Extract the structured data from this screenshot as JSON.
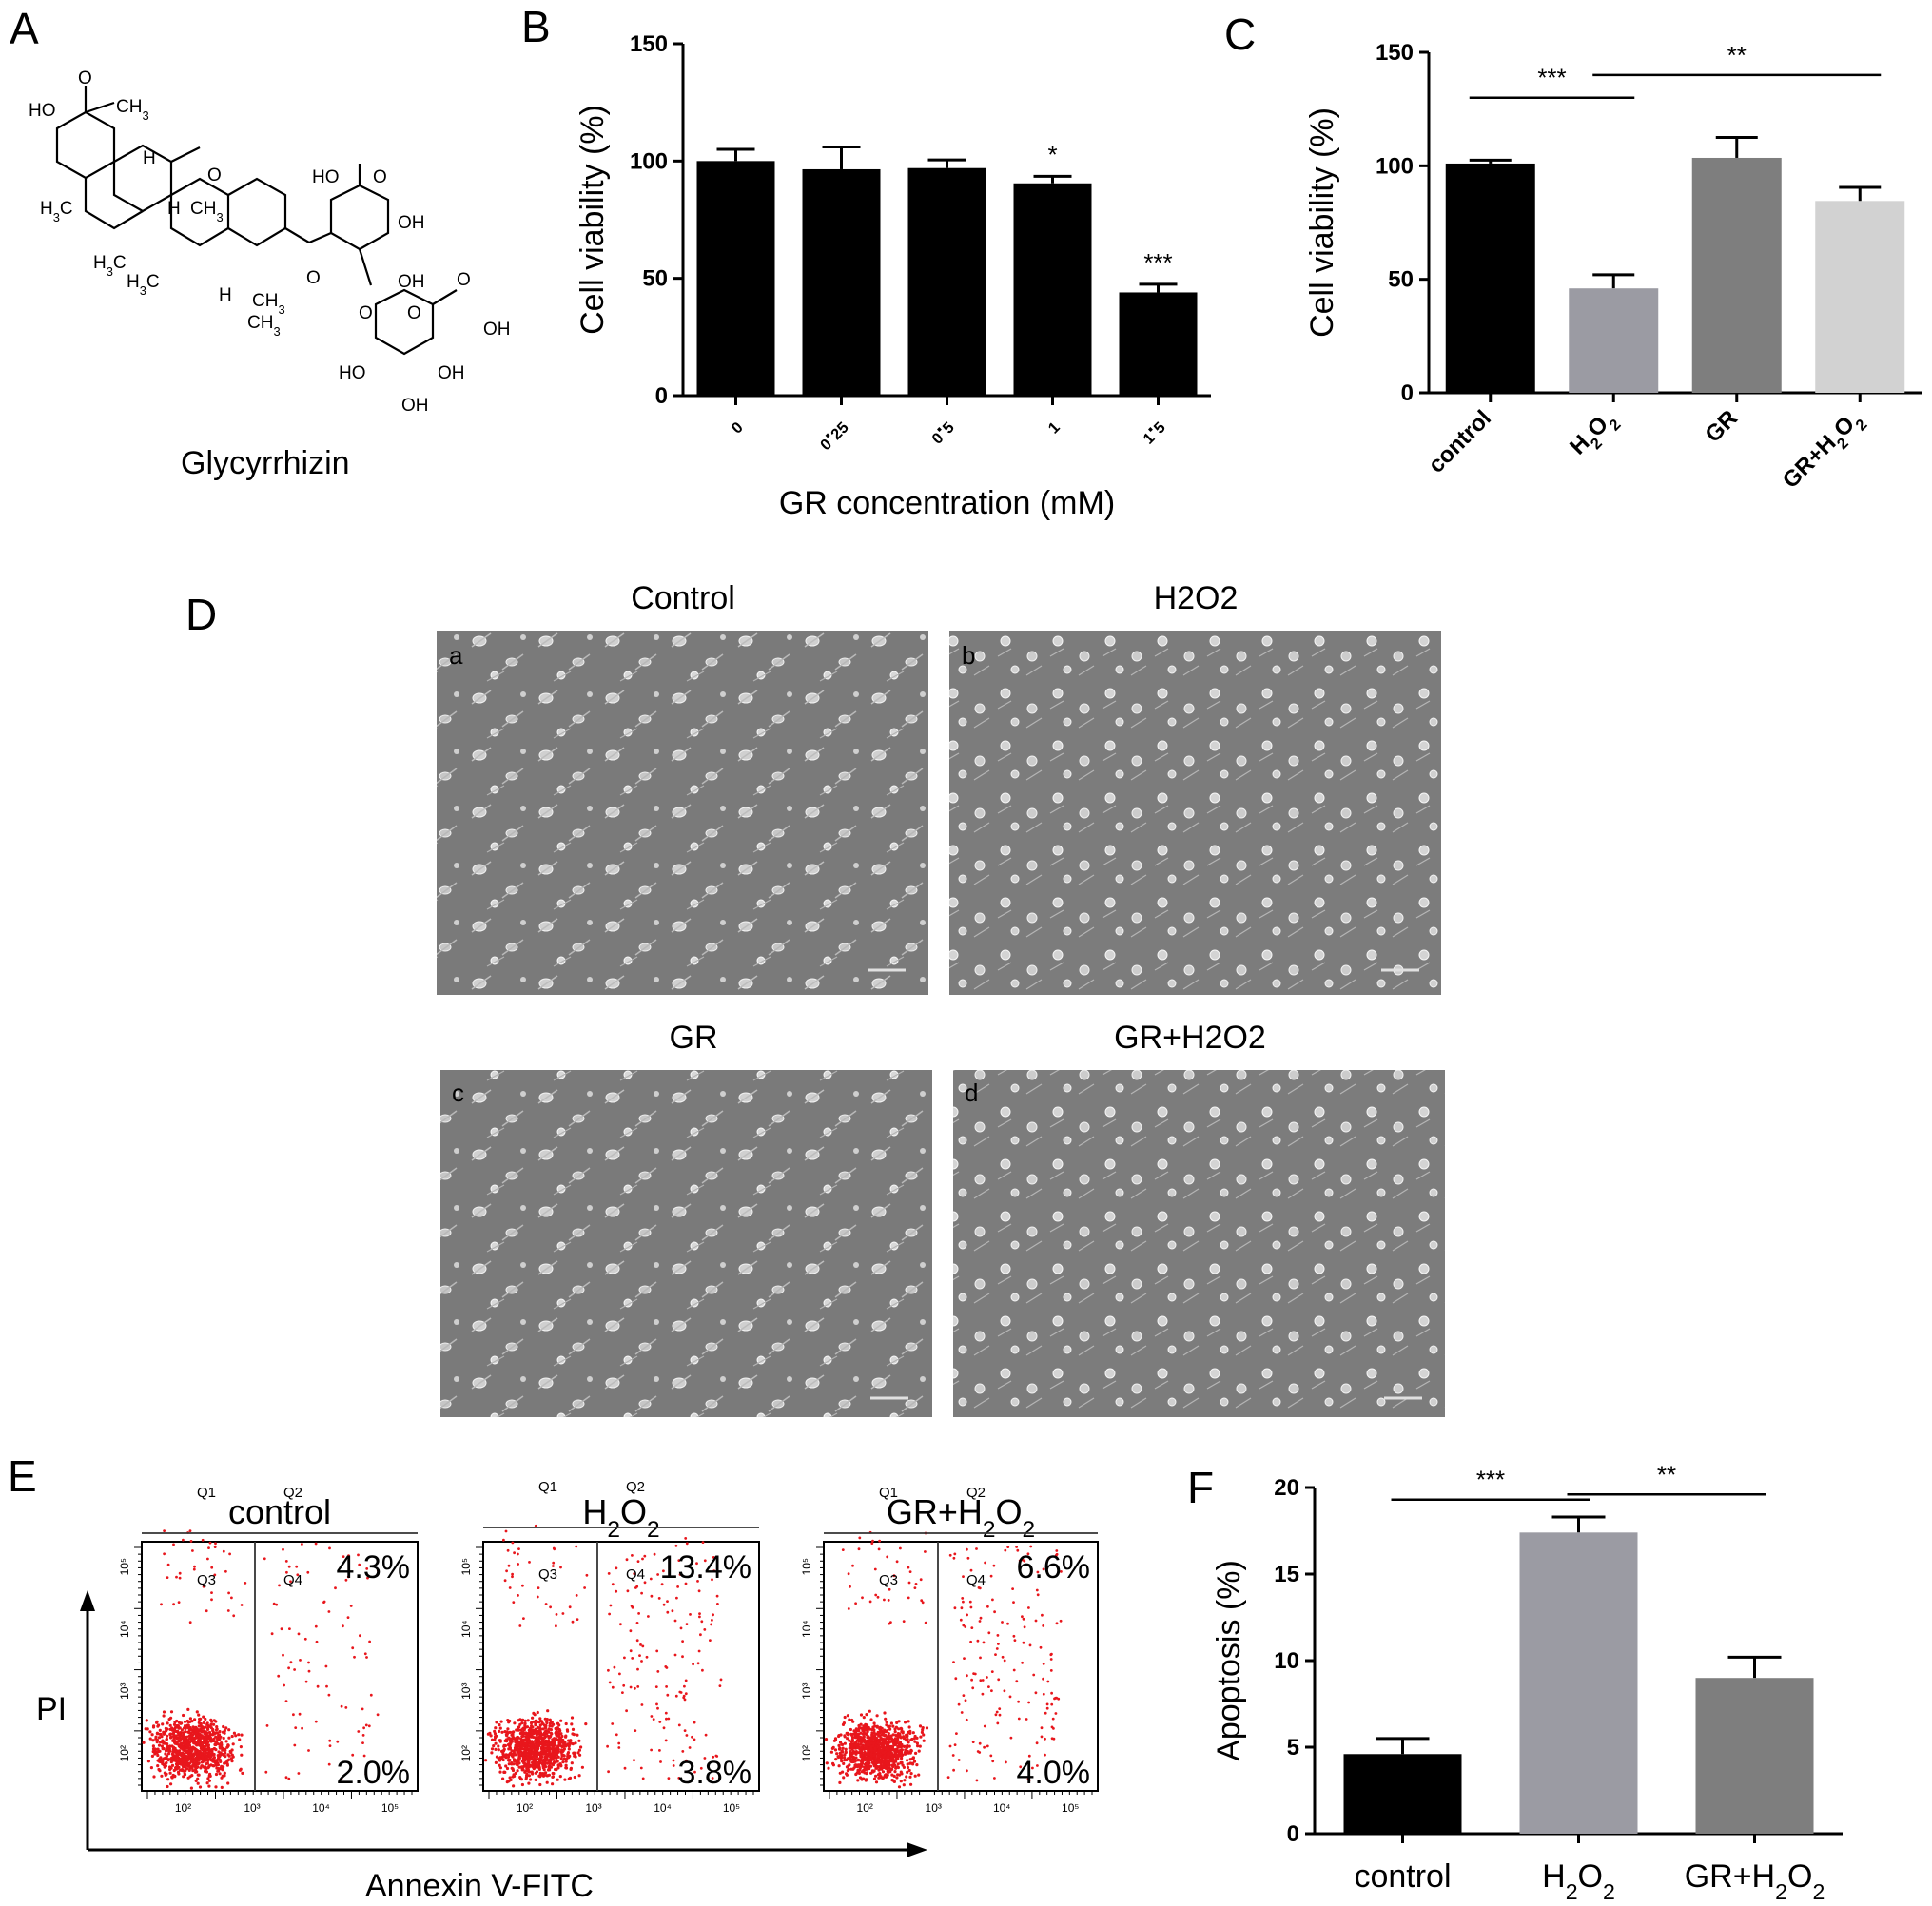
{
  "panels": {
    "A": {
      "label": "A",
      "compound_name": "Glycyrrhizin",
      "atom_labels": [
        "HO",
        "O",
        "CH3",
        "H",
        "O",
        "H3C",
        "H",
        "CH3",
        "HO",
        "O",
        "OH",
        "H3C",
        "H3C",
        "H",
        "CH3",
        "CH3",
        "O",
        "OH",
        "O",
        "O",
        "O",
        "OH",
        "HO",
        "OH",
        "OH"
      ]
    },
    "B": {
      "label": "B",
      "chart_data": {
        "type": "bar",
        "categories": [
          "0",
          "0.25",
          "0.5",
          "1",
          "1.5"
        ],
        "values": [
          100,
          96.5,
          97,
          90.5,
          44
        ],
        "errors": [
          5,
          9.5,
          3.5,
          3,
          3.5
        ],
        "significance": [
          "",
          "",
          "",
          "*",
          "***"
        ],
        "xlabel": "GR concentration (mM)",
        "ylabel": "Cell viability (%)",
        "yticks": [
          0,
          50,
          100,
          150
        ],
        "ylim": [
          0,
          150
        ],
        "bar_color": "#000000"
      }
    },
    "C": {
      "label": "C",
      "chart_data": {
        "type": "bar",
        "categories": [
          "control",
          "H2O2",
          "GR",
          "GR+H2O2"
        ],
        "values": [
          101,
          46,
          103.5,
          84.5
        ],
        "errors": [
          1.5,
          6,
          9,
          6
        ],
        "colors": [
          "#000000",
          "#9b9ba3",
          "#7e7e7e",
          "#d2d2d2"
        ],
        "comparisons": [
          {
            "from": "control",
            "to": "H2O2",
            "label": "***"
          },
          {
            "from": "H2O2",
            "to": "GR+H2O2",
            "label": "**"
          }
        ],
        "ylabel": "Cell viability (%)",
        "yticks": [
          0,
          50,
          100,
          150
        ],
        "ylim": [
          0,
          150
        ]
      }
    },
    "D": {
      "label": "D",
      "images": [
        {
          "title": "Control",
          "letter": "a"
        },
        {
          "title": "H2O2",
          "letter": "b"
        },
        {
          "title": "GR",
          "letter": "c"
        },
        {
          "title": "GR+H2O2",
          "letter": "d"
        }
      ]
    },
    "E": {
      "label": "E",
      "xlabel": "Annexin V-FITC",
      "ylabel": "PI",
      "quadrant_names": [
        "Q1",
        "Q2",
        "Q3",
        "Q4"
      ],
      "tick_labels": [
        "10²",
        "10³",
        "10⁴",
        "10⁵"
      ],
      "dot_color": "#e8161c",
      "plots": [
        {
          "title": "control",
          "upper_right": "4.3%",
          "lower_right": "2.0%"
        },
        {
          "title": "H2O2",
          "upper_right": "13.4%",
          "lower_right": "3.8%"
        },
        {
          "title": "GR+H2O2",
          "upper_right": "6.6%",
          "lower_right": "4.0%"
        }
      ]
    },
    "F": {
      "label": "F",
      "chart_data": {
        "type": "bar",
        "categories": [
          "control",
          "H2O2",
          "GR+H2O2"
        ],
        "values": [
          4.6,
          17.4,
          9
        ],
        "errors": [
          0.9,
          0.9,
          1.2
        ],
        "colors": [
          "#000000",
          "#9b9ba3",
          "#7e7e7e"
        ],
        "comparisons": [
          {
            "from": "control",
            "to": "H2O2",
            "label": "***"
          },
          {
            "from": "H2O2",
            "to": "GR+H2O2",
            "label": "**"
          }
        ],
        "ylabel": "Apoptosis (%)",
        "yticks": [
          0,
          5,
          10,
          15,
          20
        ],
        "ylim": [
          0,
          20
        ]
      }
    }
  }
}
